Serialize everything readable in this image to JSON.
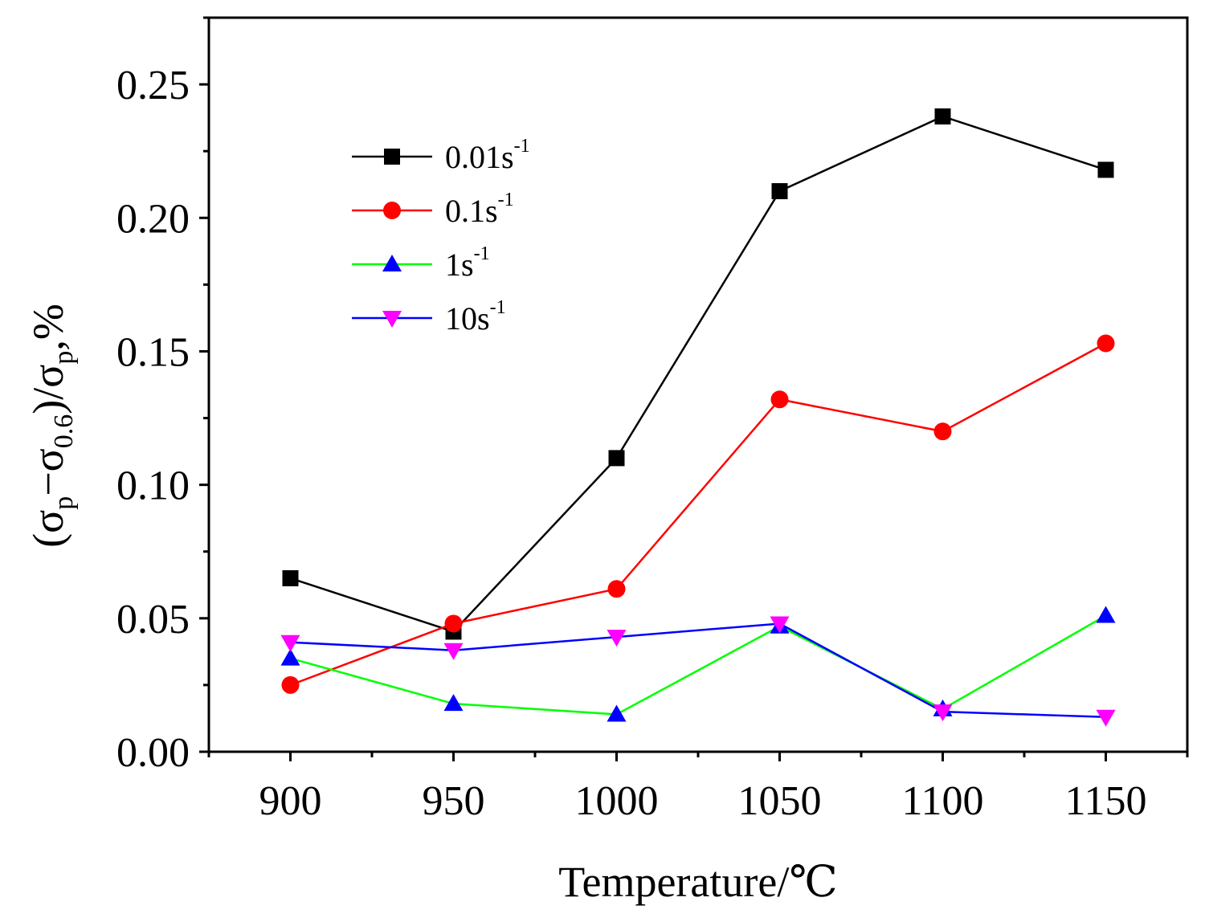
{
  "chart_data": {
    "type": "line",
    "title": "",
    "xlabel": "Temperature/℃",
    "ylabel": {
      "open": "(σ",
      "sub1": "p",
      "minus": "−σ",
      "sub2": "0.6",
      "close": ")/σ",
      "sub3": "p",
      "tail": ",%"
    },
    "x": [
      900,
      950,
      1000,
      1050,
      1100,
      1150
    ],
    "xlim": [
      875,
      1175
    ],
    "ylim": [
      0.0,
      0.275
    ],
    "x_ticks": [
      "900",
      "950",
      "1000",
      "1050",
      "1100",
      "1150"
    ],
    "y_ticks": [
      "0.00",
      "0.05",
      "0.10",
      "0.15",
      "0.20",
      "0.25"
    ],
    "x_tick_values": [
      900,
      950,
      1000,
      1050,
      1100,
      1150
    ],
    "y_tick_values": [
      0.0,
      0.05,
      0.1,
      0.15,
      0.2,
      0.25
    ],
    "legend_position": "upper-left",
    "series": [
      {
        "name": "0.01s",
        "sup": "-1",
        "marker": "square",
        "color": "#000000",
        "markerColor": "#000000",
        "values": [
          0.065,
          0.045,
          0.11,
          0.21,
          0.238,
          0.218
        ]
      },
      {
        "name": "0.1s",
        "sup": "-1",
        "marker": "circle",
        "color": "#ff0000",
        "markerColor": "#ff0000",
        "values": [
          0.025,
          0.048,
          0.061,
          0.132,
          0.12,
          0.153
        ]
      },
      {
        "name": "1s",
        "sup": "-1",
        "marker": "triangle-up",
        "color": "#00ff00",
        "markerColor": "#0000ff",
        "values": [
          0.035,
          0.018,
          0.014,
          0.047,
          0.016,
          0.051
        ]
      },
      {
        "name": "10s",
        "sup": "-1",
        "marker": "triangle-down",
        "color": "#0000ff",
        "markerColor": "#ff00ff",
        "values": [
          0.041,
          0.038,
          0.043,
          0.048,
          0.015,
          0.013
        ]
      }
    ]
  }
}
